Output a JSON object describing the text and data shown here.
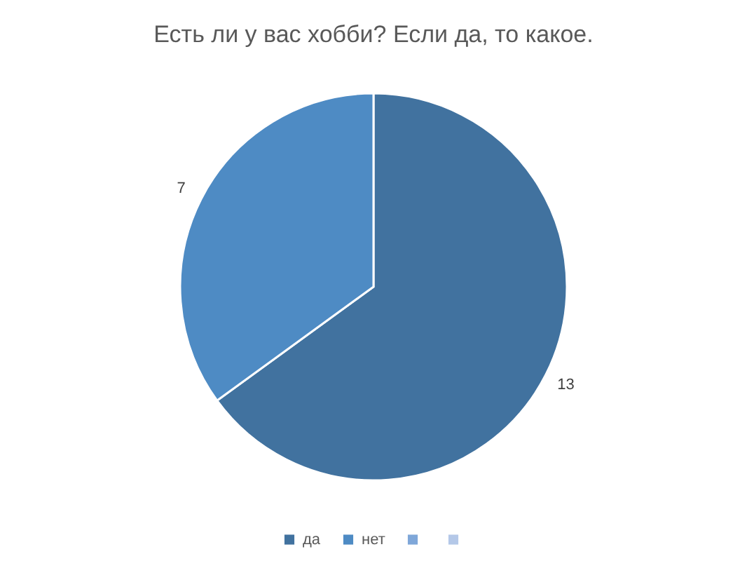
{
  "chart_data": {
    "type": "pie",
    "title": "Есть ли у вас хобби? Если да, то какое.",
    "categories": [
      "да",
      "нет",
      null,
      null
    ],
    "values": [
      13,
      7,
      null,
      null
    ],
    "colors": [
      "#41729f",
      "#4e8bc4",
      "#7fa7d9",
      "#b4c8e8"
    ],
    "data_labels": true,
    "legend": "bottom"
  }
}
